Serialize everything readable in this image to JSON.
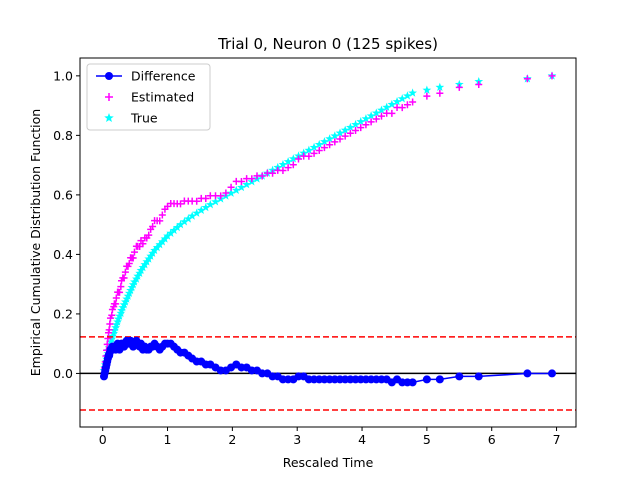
{
  "chart_data": {
    "type": "scatter",
    "title": "Trial 0, Neuron 0 (125 spikes)",
    "xlabel": "Rescaled Time",
    "ylabel": "Empirical Cumulative Distribution Function",
    "xlim": [
      -0.35,
      7.3
    ],
    "ylim": [
      -0.18,
      1.06
    ],
    "xticks": [
      "0",
      "1",
      "2",
      "3",
      "4",
      "5",
      "6",
      "7"
    ],
    "yticks": [
      "0.0",
      "0.2",
      "0.4",
      "0.6",
      "0.8",
      "1.0"
    ],
    "grid": false,
    "legend_position": "top-left",
    "spike_count": 125,
    "reference_lines": {
      "zero": 0.0,
      "upper_bound": 0.123,
      "lower_bound": -0.123
    },
    "series": [
      {
        "name": "Difference",
        "marker": "circle-line",
        "color": "#0000ff"
      },
      {
        "name": "Estimated",
        "marker": "plus",
        "color": "#ff00ff"
      },
      {
        "name": "True",
        "marker": "star",
        "color": "#00ffff"
      }
    ],
    "rescaled_times": [
      0.02,
      0.03,
      0.04,
      0.05,
      0.06,
      0.07,
      0.08,
      0.09,
      0.1,
      0.11,
      0.12,
      0.14,
      0.15,
      0.17,
      0.18,
      0.2,
      0.21,
      0.23,
      0.24,
      0.26,
      0.28,
      0.29,
      0.31,
      0.33,
      0.35,
      0.37,
      0.39,
      0.41,
      0.43,
      0.45,
      0.47,
      0.49,
      0.52,
      0.54,
      0.57,
      0.59,
      0.62,
      0.65,
      0.68,
      0.71,
      0.74,
      0.77,
      0.8,
      0.84,
      0.88,
      0.92,
      0.96,
      1.0,
      1.05,
      1.1,
      1.15,
      1.2,
      1.26,
      1.32,
      1.38,
      1.45,
      1.52,
      1.59,
      1.66,
      1.74,
      1.82,
      1.9,
      1.98,
      2.06,
      2.14,
      2.22,
      2.3,
      2.38,
      2.46,
      2.54,
      2.62,
      2.7,
      2.78,
      2.86,
      2.94,
      3.02,
      3.1,
      3.18,
      3.26,
      3.34,
      3.42,
      3.5,
      3.58,
      3.66,
      3.74,
      3.82,
      3.9,
      3.98,
      4.06,
      4.14,
      4.22,
      4.3,
      4.38,
      4.46,
      4.54,
      4.62,
      4.7,
      4.78,
      5.0,
      5.2,
      5.5,
      5.8,
      6.55,
      6.93
    ],
    "difference_values": [
      -0.01,
      0.0,
      0.01,
      0.02,
      0.03,
      0.04,
      0.05,
      0.06,
      0.06,
      0.07,
      0.08,
      0.08,
      0.09,
      0.09,
      0.09,
      0.08,
      0.09,
      0.1,
      0.09,
      0.08,
      0.09,
      0.1,
      0.1,
      0.09,
      0.1,
      0.11,
      0.1,
      0.1,
      0.11,
      0.1,
      0.09,
      0.1,
      0.11,
      0.1,
      0.09,
      0.1,
      0.08,
      0.09,
      0.08,
      0.08,
      0.09,
      0.09,
      0.1,
      0.09,
      0.08,
      0.09,
      0.1,
      0.1,
      0.1,
      0.09,
      0.08,
      0.07,
      0.07,
      0.06,
      0.05,
      0.04,
      0.04,
      0.03,
      0.03,
      0.02,
      0.01,
      0.01,
      0.02,
      0.03,
      0.02,
      0.02,
      0.01,
      0.01,
      0.0,
      0.0,
      -0.01,
      -0.01,
      -0.02,
      -0.02,
      -0.02,
      -0.01,
      -0.01,
      -0.02,
      -0.02,
      -0.02,
      -0.02,
      -0.02,
      -0.02,
      -0.02,
      -0.02,
      -0.02,
      -0.02,
      -0.02,
      -0.02,
      -0.02,
      -0.02,
      -0.02,
      -0.02,
      -0.03,
      -0.02,
      -0.03,
      -0.03,
      -0.03,
      -0.02,
      -0.02,
      -0.01,
      -0.01,
      0.0,
      0.0
    ]
  }
}
